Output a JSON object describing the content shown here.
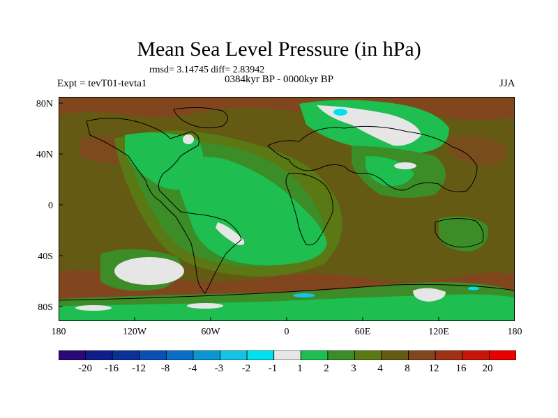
{
  "figure": {
    "title": "Mean Sea Level Pressure (in hPa)",
    "stats_line": "rmsd= 3.14745 diff= 2.83942",
    "period": "0384kyr BP - 0000kyr BP",
    "experiment": "Expt = tevT01-tevta1",
    "season": "JJA"
  },
  "axes": {
    "lat_labels": [
      "80N",
      "40N",
      "0",
      "40S",
      "80S"
    ],
    "lon_labels": [
      "180",
      "120W",
      "60W",
      "0",
      "60E",
      "120E",
      "180"
    ]
  },
  "colorbar": {
    "levels": [
      "-20",
      "-16",
      "-12",
      "-8",
      "-4",
      "-3",
      "-2",
      "-1",
      "1",
      "2",
      "3",
      "4",
      "8",
      "12",
      "16",
      "20"
    ],
    "colors": [
      "#2a0a78",
      "#101e8c",
      "#0a3296",
      "#0a50b4",
      "#0a6ec8",
      "#0a96d2",
      "#14c3e6",
      "#00e1f0",
      "#e6e6e6",
      "#1ebe50",
      "#3c8c28",
      "#5a7814",
      "#645a14",
      "#82461e",
      "#a03214",
      "#c8140a",
      "#e60000"
    ]
  },
  "map_colors": {
    "ocean_base": "#645a14",
    "band_1_2": "#1ebe50",
    "band_2_3": "#3c8c28",
    "band_3_4": "#5a7814",
    "band_4_8": "#645a14",
    "band_8_12": "#82461e",
    "band_neg1_1": "#e6e6e6",
    "band_neg2_neg1": "#00e1f0",
    "band_neg3_neg2": "#14c3e6",
    "coast": "#000000"
  }
}
